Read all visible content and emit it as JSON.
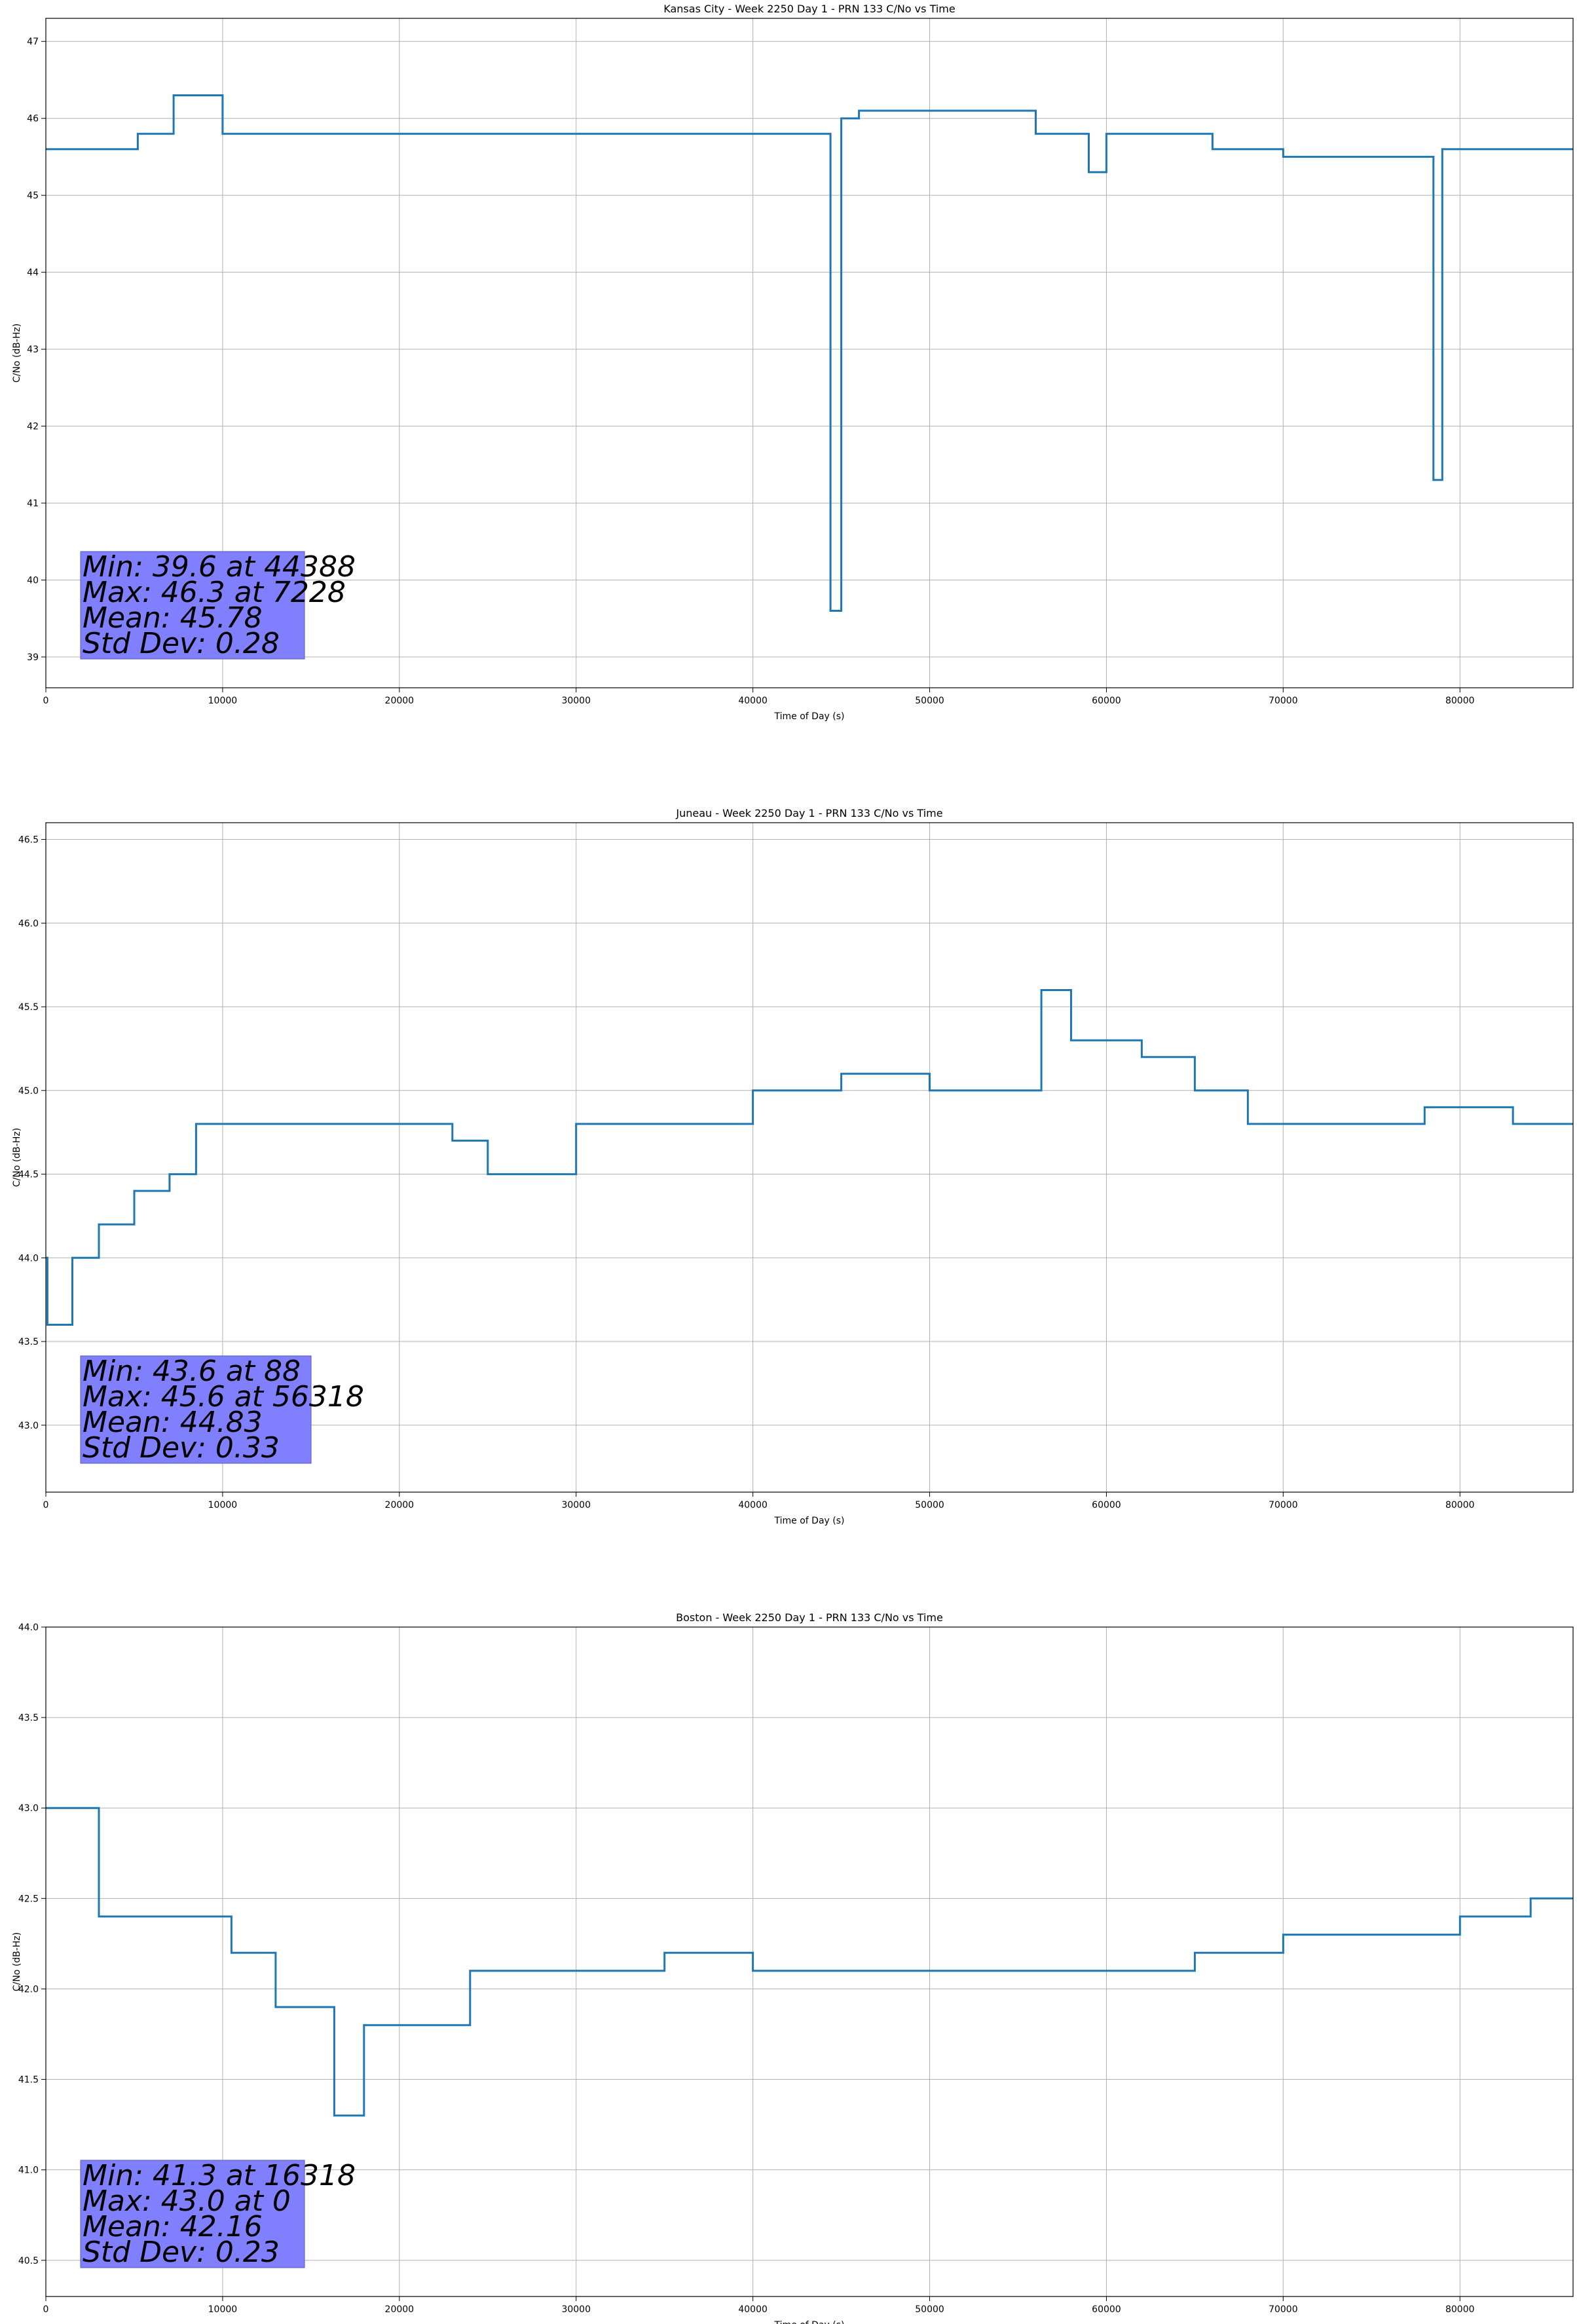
{
  "figure": {
    "series_color": "#1f77b4",
    "grid_color": "#b0b0b0",
    "stats_box_color": "#8080ff"
  },
  "chart_data": [
    {
      "type": "line",
      "title": "Kansas City - Week 2250 Day 1 - PRN 133 C/No vs Time",
      "xlabel": "Time of Day (s)",
      "ylabel": "C/No (dB-Hz)",
      "xlim": [
        0,
        86400
      ],
      "ylim": [
        38.6,
        47.3
      ],
      "xticks": [
        0,
        10000,
        20000,
        30000,
        40000,
        50000,
        60000,
        70000,
        80000
      ],
      "yticks": [
        39,
        40,
        41,
        42,
        43,
        44,
        45,
        46,
        47
      ],
      "ytick_decimals": 0,
      "grid": true,
      "stats": [
        "Min: 39.6 at 44388",
        "Max: 46.3 at 7228",
        "Mean: 45.78",
        "Std Dev: 0.28"
      ],
      "x": [
        0,
        5000,
        5200,
        7228,
        10000,
        17000,
        20000,
        30000,
        40000,
        43000,
        44388,
        45000,
        46000,
        55000,
        56000,
        59000,
        60000,
        65000,
        66000,
        70000,
        78000,
        78500,
        79000,
        86400
      ],
      "y": [
        45.6,
        45.6,
        45.8,
        46.3,
        45.8,
        45.8,
        45.8,
        45.8,
        45.8,
        45.8,
        39.6,
        46.0,
        46.1,
        46.1,
        45.8,
        45.3,
        45.8,
        45.8,
        45.6,
        45.5,
        45.5,
        41.3,
        45.6,
        45.6
      ]
    },
    {
      "type": "line",
      "title": "Juneau - Week 2250 Day 1 - PRN 133 C/No vs Time",
      "xlabel": "Time of Day (s)",
      "ylabel": "C/No (dB-Hz)",
      "xlim": [
        0,
        86400
      ],
      "ylim": [
        42.6,
        46.6
      ],
      "xticks": [
        0,
        10000,
        20000,
        30000,
        40000,
        50000,
        60000,
        70000,
        80000
      ],
      "yticks": [
        43.0,
        43.5,
        44.0,
        44.5,
        45.0,
        45.5,
        46.0,
        46.5
      ],
      "ytick_decimals": 1,
      "grid": true,
      "stats": [
        "Min: 43.6 at 88",
        "Max: 45.6 at 56318",
        "Mean: 44.83",
        "Std Dev: 0.33"
      ],
      "x": [
        0,
        88,
        1500,
        3000,
        5000,
        7000,
        8500,
        12000,
        16000,
        20000,
        23000,
        25000,
        28000,
        30000,
        35000,
        40000,
        45000,
        50000,
        56318,
        58000,
        62000,
        65000,
        68000,
        72000,
        78000,
        83000,
        86400
      ],
      "y": [
        44.0,
        43.6,
        44.0,
        44.2,
        44.4,
        44.5,
        44.8,
        44.8,
        44.8,
        44.8,
        44.7,
        44.5,
        44.5,
        44.8,
        44.8,
        45.0,
        45.1,
        45.0,
        45.6,
        45.3,
        45.2,
        45.0,
        44.8,
        44.8,
        44.9,
        44.8,
        44.8
      ]
    },
    {
      "type": "line",
      "title": "Boston - Week 2250 Day 1 - PRN 133 C/No vs Time",
      "xlabel": "Time of Day (s)",
      "ylabel": "C/No (dB-Hz)",
      "xlim": [
        0,
        86400
      ],
      "ylim": [
        40.3,
        44.0
      ],
      "xticks": [
        0,
        10000,
        20000,
        30000,
        40000,
        50000,
        60000,
        70000,
        80000
      ],
      "yticks": [
        40.5,
        41.0,
        41.5,
        42.0,
        42.5,
        43.0,
        43.5,
        44.0
      ],
      "ytick_decimals": 1,
      "grid": true,
      "stats": [
        "Min: 41.3 at 16318",
        "Max: 43.0 at 0",
        "Mean: 42.16",
        "Std Dev: 0.23"
      ],
      "x": [
        0,
        3000,
        8000,
        10500,
        13000,
        16318,
        18000,
        22000,
        24000,
        30000,
        35000,
        40000,
        48000,
        55000,
        60000,
        65000,
        70000,
        75000,
        80000,
        84000,
        86400
      ],
      "y": [
        43.0,
        42.4,
        42.4,
        42.2,
        41.9,
        41.3,
        41.8,
        41.8,
        42.1,
        42.1,
        42.2,
        42.1,
        42.1,
        42.1,
        42.1,
        42.2,
        42.3,
        42.3,
        42.4,
        42.5,
        42.5
      ]
    }
  ]
}
